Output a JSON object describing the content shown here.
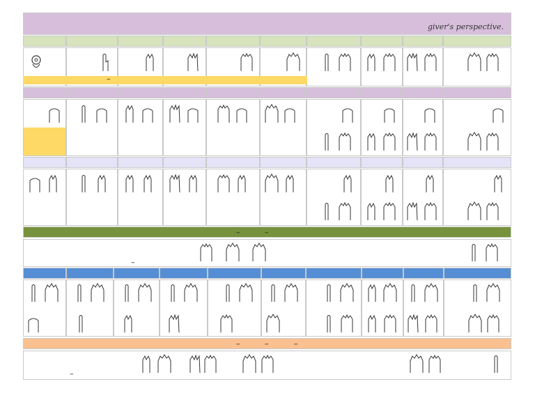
{
  "title": "giver's perspective.",
  "dashes": {
    "yellow_bar": "–",
    "olive_bar": [
      "–",
      "–"
    ],
    "plain_row": "–",
    "peach_bar": [
      "–",
      "–",
      "–"
    ],
    "bottom_row": "–"
  },
  "icons": {
    "hand": "hand-sign-icon",
    "ok": "ok-hand-icon"
  },
  "colors": {
    "title_header": "#d7bfdc",
    "green_header": "#d6e3bc",
    "mauve_header": "#d6bfdb",
    "lavender_header": "#e5e3f7",
    "olive_bar": "#76923c",
    "blue_header": "#558ed5",
    "peach_bar": "#fac090",
    "yellow": "#ffd966"
  }
}
